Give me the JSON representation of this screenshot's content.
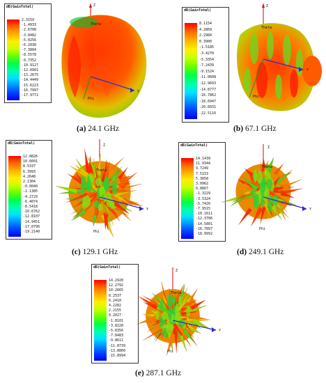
{
  "panels": [
    {
      "id": "a",
      "label": "(a)",
      "freq": "24.1 GHz",
      "legend_title": "dB(GainTotal)",
      "values": [
        "2.3159",
        "-1.4933",
        "-2.6708",
        "-3.8482",
        "-5.0256",
        "-6.2030",
        "-7.3804",
        "-8.5578",
        "-9.7352",
        "-10.9127",
        "-12.0901",
        "-13.2675",
        "-14.4449",
        "-15.6223",
        "-16.7997",
        "-17.9772"
      ],
      "axes": {
        "z": "Z",
        "y": "Y",
        "theta": "Theta",
        "phi": "Phi"
      }
    },
    {
      "id": "b",
      "label": "(b)",
      "freq": "67.1 GHz",
      "legend_title": "dB(GainTotal)",
      "values": [
        "8.1154",
        "4.2869",
        "2.2984",
        "0.3900",
        "-1.5185",
        "-3.4270",
        "-5.3354",
        "-7.2439",
        "-9.1524",
        "-11.0608",
        "-12.9693",
        "-14.8777",
        "-16.7862",
        "-18.6947",
        "-20.6031",
        "-22.5116"
      ],
      "axes": {
        "z": "Z",
        "y": "Y",
        "theta": "Theta",
        "phi": "Phi"
      }
    },
    {
      "id": "c",
      "label": "(c)",
      "freq": "129.1 GHz",
      "legend_title": "dB(GainTotal)",
      "values": [
        "12.8826",
        "10.6601",
        "8.5337",
        "6.3993",
        "4.2648",
        "2.1304",
        "-0.0040",
        "-2.1385",
        "-4.2729",
        "-6.4074",
        "-8.5418",
        "-10.6762",
        "-12.8107",
        "-14.9451",
        "-17.0796",
        "-19.2140"
      ],
      "axes": {
        "z": "Z",
        "y": "Y",
        "theta": "Theta",
        "phi": "Phi"
      }
    },
    {
      "id": "d",
      "label": "(d)",
      "freq": "249.1 GHz",
      "legend_title": "dB(GainTotal)",
      "values": [
        "14.1439",
        "11.9344",
        "9.7249",
        "7.5153",
        "5.3058",
        "3.0962",
        "0.8867",
        "-1.3229",
        "-3.5324",
        "-5.7420",
        "-7.9515",
        "-10.1611",
        "-12.3706",
        "-14.5801",
        "-16.7897",
        "-18.9992"
      ],
      "axes": {
        "z": "Z",
        "y": "Y",
        "theta": "Theta",
        "phi": "Phi"
      }
    },
    {
      "id": "e",
      "label": "(e)",
      "freq": "287.1 GHz",
      "legend_title": "dB(GainTotal)",
      "values": [
        "14.2920",
        "12.2792",
        "10.2665",
        "8.2537",
        "6.2410",
        "4.2282",
        "2.2155",
        "0.2027",
        "-1.8101",
        "-3.8228",
        "-5.8356",
        "-7.8483",
        "-9.8611",
        "-11.8739",
        "-13.8866",
        "-15.8994"
      ],
      "axes": {
        "z": "Z",
        "y": "Y",
        "theta": "Theta",
        "phi": "Phi"
      }
    }
  ]
}
